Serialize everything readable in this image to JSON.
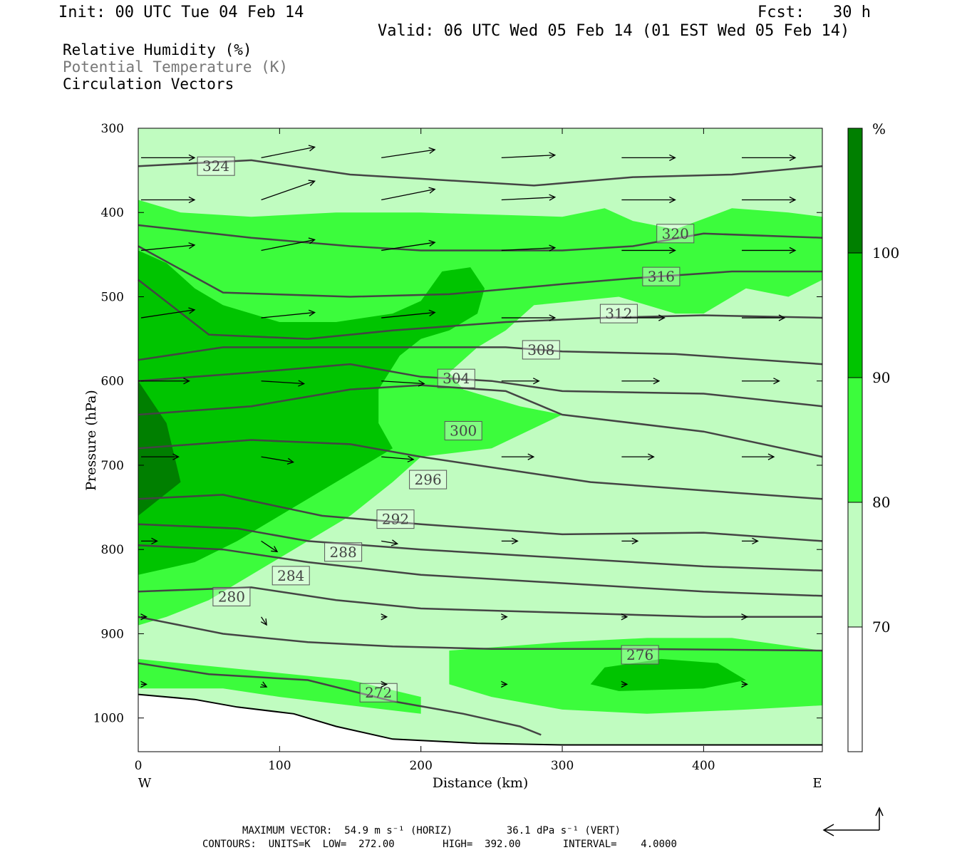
{
  "header": {
    "init": "Init: 00 UTC Tue 04 Feb 14",
    "fcst": "Fcst:   30 h",
    "valid": "Valid: 06 UTC Wed 05 Feb 14 (01 EST Wed 05 Feb 14)"
  },
  "fields": {
    "rh": "Relative Humidity (%)",
    "theta": "Potential Temperature (K)",
    "vectors": "Circulation Vectors"
  },
  "colors": {
    "rh70": "#c0fcc0",
    "rh80": "#3cfc3c",
    "rh90": "#00c400",
    "rh100": "#007f00",
    "contour": "#444444",
    "theta_label": "#777777"
  },
  "chart_data": {
    "type": "heatmap",
    "subtype": "vertical cross-section",
    "xlabel": "Distance (km)",
    "ylabel": "Pressure (hPa)",
    "xlim": [
      0,
      484
    ],
    "ylim": [
      300,
      1040
    ],
    "y_reversed": true,
    "x_ticks": [
      0,
      100,
      200,
      300,
      400
    ],
    "y_ticks": [
      300,
      400,
      500,
      600,
      700,
      800,
      900,
      1000
    ],
    "x_end_labels": {
      "left": "W",
      "right": "E"
    },
    "colorbar": {
      "unit": "%",
      "levels": [
        70,
        80,
        90,
        100
      ],
      "labels": [
        "70",
        "80",
        "90",
        "100"
      ]
    },
    "rh_regions": [
      {
        "level": 70,
        "points": [
          [
            0,
            300
          ],
          [
            484,
            300
          ],
          [
            484,
            1040
          ],
          [
            0,
            1040
          ]
        ]
      },
      {
        "level": 80,
        "points": [
          [
            0,
            385
          ],
          [
            30,
            400
          ],
          [
            80,
            405
          ],
          [
            140,
            400
          ],
          [
            200,
            400
          ],
          [
            300,
            405
          ],
          [
            330,
            395
          ],
          [
            350,
            410
          ],
          [
            380,
            420
          ],
          [
            420,
            395
          ],
          [
            460,
            400
          ],
          [
            484,
            405
          ],
          [
            484,
            480
          ],
          [
            460,
            500
          ],
          [
            430,
            490
          ],
          [
            400,
            520
          ],
          [
            380,
            520
          ],
          [
            340,
            500
          ],
          [
            280,
            510
          ],
          [
            260,
            540
          ],
          [
            240,
            560
          ],
          [
            220,
            590
          ],
          [
            230,
            610
          ],
          [
            270,
            630
          ],
          [
            300,
            640
          ],
          [
            250,
            680
          ],
          [
            200,
            690
          ],
          [
            180,
            720
          ],
          [
            150,
            760
          ],
          [
            110,
            800
          ],
          [
            80,
            830
          ],
          [
            50,
            860
          ],
          [
            20,
            880
          ],
          [
            0,
            890
          ]
        ]
      },
      {
        "level": 80,
        "points": [
          [
            220,
            920
          ],
          [
            300,
            910
          ],
          [
            360,
            905
          ],
          [
            420,
            905
          ],
          [
            484,
            920
          ],
          [
            484,
            985
          ],
          [
            430,
            990
          ],
          [
            360,
            995
          ],
          [
            300,
            990
          ],
          [
            250,
            975
          ],
          [
            220,
            960
          ]
        ]
      },
      {
        "level": 80,
        "points": [
          [
            0,
            930
          ],
          [
            60,
            940
          ],
          [
            150,
            955
          ],
          [
            200,
            975
          ],
          [
            200,
            995
          ],
          [
            150,
            985
          ],
          [
            100,
            975
          ],
          [
            60,
            965
          ],
          [
            0,
            965
          ]
        ]
      },
      {
        "level": 90,
        "points": [
          [
            0,
            445
          ],
          [
            20,
            460
          ],
          [
            40,
            490
          ],
          [
            60,
            510
          ],
          [
            100,
            530
          ],
          [
            140,
            530
          ],
          [
            180,
            520
          ],
          [
            200,
            505
          ],
          [
            215,
            470
          ],
          [
            235,
            465
          ],
          [
            245,
            490
          ],
          [
            240,
            520
          ],
          [
            220,
            540
          ],
          [
            200,
            550
          ],
          [
            185,
            570
          ],
          [
            170,
            610
          ],
          [
            170,
            650
          ],
          [
            180,
            680
          ],
          [
            160,
            700
          ],
          [
            130,
            730
          ],
          [
            100,
            760
          ],
          [
            70,
            790
          ],
          [
            40,
            815
          ],
          [
            0,
            830
          ]
        ]
      },
      {
        "level": 90,
        "points": [
          [
            330,
            940
          ],
          [
            370,
            930
          ],
          [
            410,
            935
          ],
          [
            430,
            955
          ],
          [
            400,
            965
          ],
          [
            340,
            968
          ],
          [
            320,
            960
          ]
        ]
      },
      {
        "level": 100,
        "points": [
          [
            0,
            600
          ],
          [
            20,
            650
          ],
          [
            30,
            720
          ],
          [
            0,
            760
          ]
        ]
      }
    ],
    "theta_contours": [
      {
        "value": 324,
        "label_at": [
          55,
          345
        ],
        "points": [
          [
            0,
            345
          ],
          [
            80,
            338
          ],
          [
            150,
            355
          ],
          [
            200,
            360
          ],
          [
            280,
            368
          ],
          [
            350,
            358
          ],
          [
            420,
            355
          ],
          [
            484,
            345
          ]
        ]
      },
      {
        "value": 320,
        "label_at": [
          380,
          425
        ],
        "points": [
          [
            0,
            415
          ],
          [
            80,
            430
          ],
          [
            150,
            440
          ],
          [
            200,
            445
          ],
          [
            300,
            445
          ],
          [
            350,
            440
          ],
          [
            400,
            425
          ],
          [
            484,
            430
          ]
        ]
      },
      {
        "value": 316,
        "label_at": [
          370,
          476
        ],
        "points": [
          [
            0,
            440
          ],
          [
            60,
            495
          ],
          [
            150,
            500
          ],
          [
            220,
            497
          ],
          [
            300,
            485
          ],
          [
            350,
            478
          ],
          [
            420,
            470
          ],
          [
            484,
            470
          ]
        ]
      },
      {
        "value": 312,
        "label_at": [
          340,
          520
        ],
        "points": [
          [
            0,
            480
          ],
          [
            50,
            545
          ],
          [
            120,
            550
          ],
          [
            180,
            540
          ],
          [
            260,
            530
          ],
          [
            330,
            525
          ],
          [
            400,
            522
          ],
          [
            484,
            525
          ]
        ]
      },
      {
        "value": 308,
        "label_at": [
          285,
          563
        ],
        "points": [
          [
            0,
            575
          ],
          [
            60,
            560
          ],
          [
            120,
            560
          ],
          [
            200,
            560
          ],
          [
            260,
            560
          ],
          [
            300,
            565
          ],
          [
            380,
            568
          ],
          [
            484,
            580
          ]
        ]
      },
      {
        "value": 304,
        "label_at": [
          225,
          597
        ],
        "points": [
          [
            0,
            600
          ],
          [
            80,
            590
          ],
          [
            150,
            580
          ],
          [
            200,
            595
          ],
          [
            250,
            600
          ],
          [
            300,
            612
          ],
          [
            400,
            615
          ],
          [
            484,
            630
          ]
        ]
      },
      {
        "value": 300,
        "label_at": [
          230,
          659
        ],
        "points": [
          [
            0,
            640
          ],
          [
            80,
            630
          ],
          [
            150,
            610
          ],
          [
            200,
            605
          ],
          [
            260,
            612
          ],
          [
            300,
            640
          ],
          [
            400,
            660
          ],
          [
            484,
            690
          ]
        ]
      },
      {
        "value": 296,
        "label_at": [
          205,
          717
        ],
        "points": [
          [
            0,
            680
          ],
          [
            80,
            670
          ],
          [
            150,
            675
          ],
          [
            200,
            690
          ],
          [
            260,
            705
          ],
          [
            320,
            720
          ],
          [
            400,
            730
          ],
          [
            484,
            740
          ]
        ]
      },
      {
        "value": 292,
        "label_at": [
          182,
          764
        ],
        "points": [
          [
            0,
            740
          ],
          [
            60,
            735
          ],
          [
            130,
            760
          ],
          [
            200,
            770
          ],
          [
            300,
            782
          ],
          [
            400,
            780
          ],
          [
            484,
            790
          ]
        ]
      },
      {
        "value": 288,
        "label_at": [
          145,
          803
        ],
        "points": [
          [
            0,
            770
          ],
          [
            70,
            775
          ],
          [
            120,
            790
          ],
          [
            200,
            800
          ],
          [
            300,
            810
          ],
          [
            400,
            820
          ],
          [
            484,
            825
          ]
        ]
      },
      {
        "value": 284,
        "label_at": [
          108,
          831
        ],
        "points": [
          [
            0,
            795
          ],
          [
            60,
            800
          ],
          [
            120,
            815
          ],
          [
            200,
            830
          ],
          [
            300,
            840
          ],
          [
            400,
            850
          ],
          [
            484,
            855
          ]
        ]
      },
      {
        "value": 280,
        "label_at": [
          66,
          856
        ],
        "points": [
          [
            0,
            850
          ],
          [
            80,
            845
          ],
          [
            140,
            860
          ],
          [
            200,
            870
          ],
          [
            300,
            875
          ],
          [
            400,
            880
          ],
          [
            484,
            880
          ]
        ]
      },
      {
        "value": 276,
        "label_at": [
          355,
          925
        ],
        "points": [
          [
            0,
            880
          ],
          [
            60,
            900
          ],
          [
            120,
            910
          ],
          [
            180,
            915
          ],
          [
            250,
            918
          ],
          [
            350,
            918
          ],
          [
            484,
            920
          ]
        ]
      },
      {
        "value": 272,
        "label_at": [
          170,
          970
        ],
        "points": [
          [
            0,
            935
          ],
          [
            50,
            948
          ],
          [
            120,
            955
          ],
          [
            180,
            980
          ],
          [
            230,
            995
          ],
          [
            270,
            1010
          ],
          [
            285,
            1020
          ]
        ]
      }
    ],
    "ground": [
      [
        0,
        972
      ],
      [
        40,
        978
      ],
      [
        70,
        987
      ],
      [
        110,
        995
      ],
      [
        140,
        1010
      ],
      [
        180,
        1025
      ],
      [
        240,
        1030
      ],
      [
        300,
        1032
      ],
      [
        484,
        1032
      ]
    ],
    "vectors": [
      {
        "p": 335,
        "x": [
          0,
          85,
          170,
          255,
          340,
          425
        ],
        "u": [
          1,
          1,
          1,
          1,
          1,
          1
        ],
        "w": [
          0,
          -0.2,
          -0.15,
          -0.05,
          0,
          0
        ]
      },
      {
        "p": 385,
        "x": [
          0,
          85,
          170,
          255,
          340,
          425
        ],
        "u": [
          1,
          1,
          1,
          1,
          1,
          1
        ],
        "w": [
          0,
          -0.35,
          -0.2,
          -0.05,
          0,
          0
        ]
      },
      {
        "p": 445,
        "x": [
          0,
          85,
          170,
          255,
          340,
          425
        ],
        "u": [
          1,
          1,
          1,
          1,
          1,
          1
        ],
        "w": [
          -0.1,
          -0.2,
          -0.15,
          -0.05,
          0,
          0
        ]
      },
      {
        "p": 525,
        "x": [
          0,
          85,
          170,
          255,
          340,
          425
        ],
        "u": [
          1,
          1,
          1,
          1,
          0.8,
          0.8
        ],
        "w": [
          -0.15,
          -0.1,
          -0.1,
          0,
          0,
          0
        ]
      },
      {
        "p": 600,
        "x": [
          0,
          85,
          170,
          255,
          340,
          425
        ],
        "u": [
          0.9,
          0.8,
          0.8,
          0.7,
          0.7,
          0.7
        ],
        "w": [
          0,
          0.05,
          0.05,
          0,
          0,
          0
        ]
      },
      {
        "p": 690,
        "x": [
          0,
          85,
          170,
          255,
          340,
          425
        ],
        "u": [
          0.7,
          0.6,
          0.6,
          0.6,
          0.6,
          0.6
        ],
        "w": [
          0,
          0.1,
          0.05,
          0,
          0,
          0
        ]
      },
      {
        "p": 790,
        "x": [
          0,
          85,
          170,
          255,
          340,
          425
        ],
        "u": [
          0.3,
          0.3,
          0.3,
          0.3,
          0.3,
          0.3
        ],
        "w": [
          0,
          0.2,
          0.05,
          0,
          0,
          0
        ]
      },
      {
        "p": 880,
        "x": [
          0,
          85,
          170,
          255,
          340,
          425
        ],
        "u": [
          0.1,
          0.1,
          0.1,
          0.1,
          0.1,
          0.1
        ],
        "w": [
          0,
          0.15,
          0,
          0,
          0,
          0
        ]
      },
      {
        "p": 960,
        "x": [
          0,
          85,
          170,
          255,
          340,
          425
        ],
        "u": [
          0.1,
          0.1,
          0.1,
          0.1,
          0.1,
          0.1
        ],
        "w": [
          0,
          0.05,
          0,
          0,
          0,
          0
        ]
      }
    ]
  },
  "footer": {
    "max_vector": "MAXIMUM VECTOR:  54.9 m s⁻¹ (HORIZ)         36.1 dPa s⁻¹ (VERT)",
    "contours": "CONTOURS:  UNITS=K  LOW=  272.00        HIGH=  392.00       INTERVAL=    4.0000"
  }
}
